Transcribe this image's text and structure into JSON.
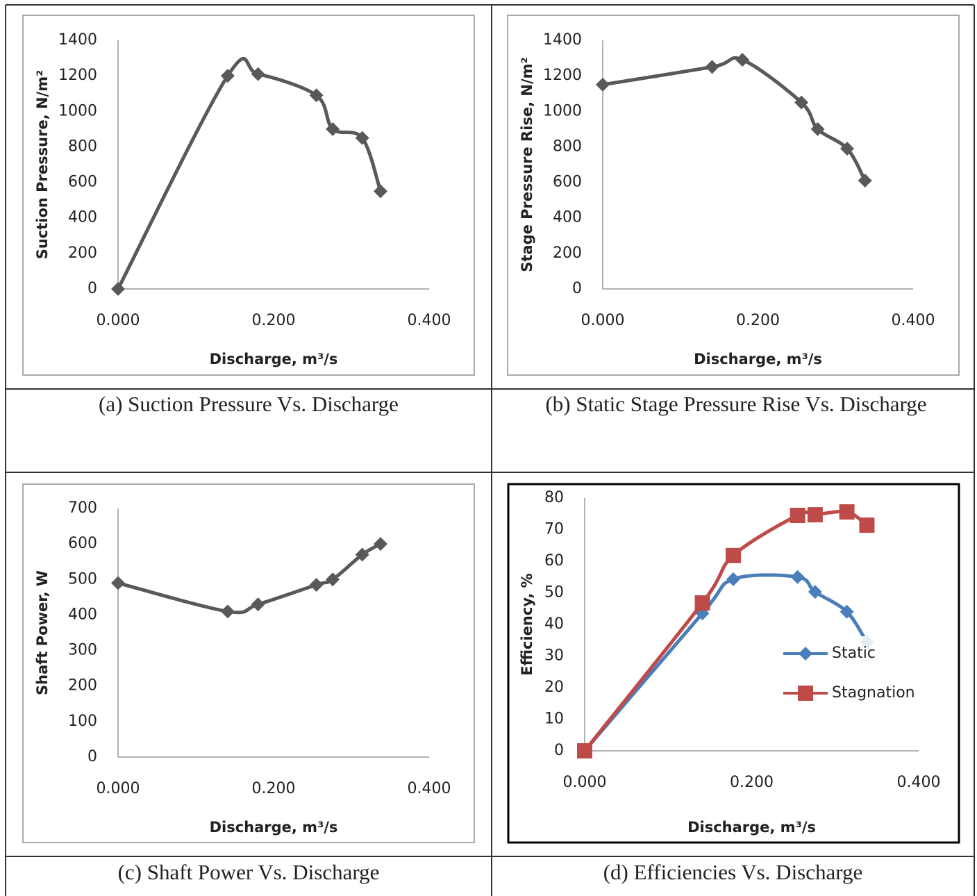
{
  "chart_data": [
    {
      "type": "line",
      "caption": "(a) Suction Pressure Vs. Discharge",
      "xlabel": "Discharge, m³/s",
      "ylabel": "Suction Pressure, N/m²",
      "x": [
        0,
        0.141,
        0.18,
        0.255,
        0.276,
        0.314,
        0.3375
      ],
      "series": [
        {
          "color": "#595959",
          "marker": "diamond",
          "values": [
            0,
            1200,
            1210,
            1090,
            900,
            850,
            550
          ]
        }
      ],
      "smooth": true,
      "grid": false,
      "xlim": [
        0,
        0.4
      ],
      "xticks": [
        {
          "value": 0,
          "label": "0.000"
        },
        {
          "value": 0.2,
          "label": "0.200"
        },
        {
          "value": 0.4,
          "label": "0.400"
        }
      ],
      "ylim": [
        0,
        1400
      ],
      "yticks": [
        0,
        200,
        400,
        600,
        800,
        1000,
        1200,
        1400
      ]
    },
    {
      "type": "line",
      "caption": "(b) Static Stage Pressure Rise Vs. Discharge",
      "xlabel": "Discharge, m³/s",
      "ylabel": "Stage Pressure Rise, N/m²",
      "x": [
        0,
        0.141,
        0.18,
        0.256,
        0.277,
        0.315,
        0.338
      ],
      "series": [
        {
          "color": "#595959",
          "marker": "diamond",
          "values": [
            1150,
            1250,
            1290,
            1050,
            900,
            790,
            610
          ]
        }
      ],
      "smooth": true,
      "grid": false,
      "xlim": [
        0,
        0.4
      ],
      "xticks": [
        {
          "value": 0,
          "label": "0.000"
        },
        {
          "value": 0.2,
          "label": "0.200"
        },
        {
          "value": 0.4,
          "label": "0.400"
        }
      ],
      "ylim": [
        0,
        1400
      ],
      "yticks": [
        0,
        200,
        400,
        600,
        800,
        1000,
        1200,
        1400
      ]
    },
    {
      "type": "line",
      "caption": "(c) Shaft Power Vs. Discharge",
      "xlabel": "Discharge, m³/s",
      "ylabel": "Shaft Power, W",
      "x": [
        0,
        0.141,
        0.18,
        0.255,
        0.276,
        0.314,
        0.3375
      ],
      "series": [
        {
          "color": "#595959",
          "marker": "diamond",
          "values": [
            490,
            410,
            430,
            485,
            500,
            570,
            600
          ]
        }
      ],
      "smooth": true,
      "grid": false,
      "xlim": [
        0,
        0.4
      ],
      "xticks": [
        {
          "value": 0,
          "label": "0.000"
        },
        {
          "value": 0.2,
          "label": "0.200"
        },
        {
          "value": 0.4,
          "label": "0.400"
        }
      ],
      "ylim": [
        0,
        700
      ],
      "yticks": [
        0,
        100,
        200,
        300,
        400,
        500,
        600,
        700
      ]
    },
    {
      "type": "line",
      "caption": "(d) Efficiencies Vs. Discharge",
      "xlabel": "Discharge, m³/s",
      "ylabel": "Efficiency, %",
      "x": [
        0,
        0.141,
        0.178,
        0.255,
        0.276,
        0.314,
        0.338
      ],
      "series": [
        {
          "name": "Static",
          "color": "#4a7ebb",
          "marker": "diamond",
          "values": [
            0,
            43.5,
            54.3,
            55,
            50.3,
            44,
            34.3
          ]
        },
        {
          "name": "Stagnation",
          "color": "#be4b48",
          "marker": "square",
          "values": [
            0,
            46.8,
            61.8,
            74.5,
            74.7,
            75.6,
            71.4
          ]
        }
      ],
      "smooth": true,
      "grid": false,
      "legend": "right",
      "xlim": [
        0,
        0.4
      ],
      "xticks": [
        {
          "value": 0,
          "label": "0.000"
        },
        {
          "value": 0.2,
          "label": "0.200"
        },
        {
          "value": 0.4,
          "label": "0.400"
        }
      ],
      "ylim": [
        0,
        80
      ],
      "yticks": [
        0,
        10,
        20,
        30,
        40,
        50,
        60,
        70,
        80
      ]
    }
  ]
}
